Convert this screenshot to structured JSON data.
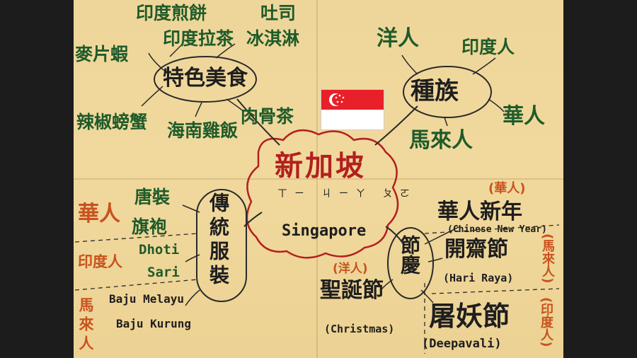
{
  "center": {
    "title": "新加坡",
    "zhuyin": "ㄒㄧ ㄐㄧㄚ ㄆㄛ",
    "english": "Singapore"
  },
  "food": {
    "branch": "特色美食",
    "items": [
      "印度煎餅",
      "印度拉茶",
      "吐司",
      "冰淇淋",
      "麥片蝦",
      "辣椒螃蟹",
      "肉骨茶",
      "海南雞飯"
    ]
  },
  "ethnic": {
    "branch": "種族",
    "items": [
      "洋人",
      "印度人",
      "華人",
      "馬來人"
    ]
  },
  "clothing": {
    "branch": "傳統服裝",
    "groups": [
      "華人",
      "印度人",
      "馬來人"
    ],
    "items": [
      "唐裝",
      "旗袍",
      "Dhoti",
      "Sari",
      "Baju Melayu",
      "Baju Kurung"
    ]
  },
  "festivals": {
    "branch": "節慶",
    "items": [
      {
        "group": "(華人)",
        "name": "華人新年",
        "english": "(Chinese New Year)"
      },
      {
        "group": "(馬來人)",
        "name": "開齋節",
        "english": "(Hari Raya)"
      },
      {
        "group": "(洋人)",
        "name": "聖誕節",
        "english": "(Christmas)"
      },
      {
        "group": "(印度人)",
        "name": "屠妖節",
        "english": "(Deepavali)"
      }
    ]
  },
  "colors": {
    "paper": "#eed69a",
    "green": "#1f5b2a",
    "orange": "#c8521f",
    "red": "#b3201e",
    "flag_red": "#e8202a"
  },
  "flag": {
    "icon": "singapore-flag-icon"
  }
}
